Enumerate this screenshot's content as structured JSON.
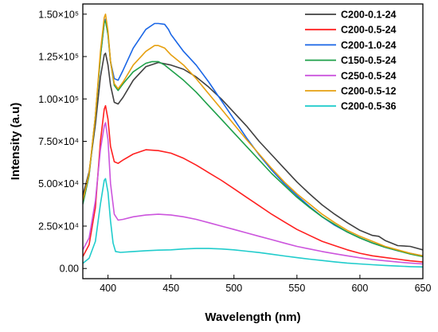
{
  "chart_data": {
    "type": "line",
    "xlabel": "Wavelength (nm)",
    "ylabel": "Intensity (a.u)",
    "xlim": [
      380,
      650
    ],
    "ylim": [
      -6000,
      156000
    ],
    "x_ticks": [
      400,
      450,
      500,
      550,
      600,
      650
    ],
    "x_tick_labels": [
      "400",
      "450",
      "500",
      "550",
      "600",
      "650"
    ],
    "y_ticks": [
      0,
      25000,
      50000,
      75000,
      100000,
      125000,
      150000
    ],
    "y_tick_labels": [
      "0.00",
      "2.50×10⁴",
      "5.00×10⁴",
      "7.50×10⁴",
      "1.00×10⁵",
      "1.25×10⁵",
      "1.50×10⁵"
    ],
    "legend_position": "top-right",
    "series": [
      {
        "name": "C200-0.1-24",
        "color": "#404040",
        "x": [
          380,
          385,
          390,
          394,
          397,
          398,
          400,
          402,
          405,
          408,
          412,
          420,
          430,
          440,
          450,
          460,
          470,
          480,
          490,
          500,
          510,
          520,
          530,
          540,
          550,
          560,
          570,
          580,
          590,
          600,
          610,
          615,
          620,
          625,
          630,
          640,
          650
        ],
        "y": [
          43000,
          57000,
          85000,
          113000,
          126000,
          127000,
          120000,
          108000,
          98000,
          97000,
          101000,
          111000,
          119000,
          121500,
          120000,
          117500,
          113000,
          107000,
          100000,
          92000,
          84000,
          75000,
          67000,
          59000,
          51000,
          44000,
          37500,
          32000,
          27000,
          22500,
          19500,
          19000,
          16500,
          15000,
          13500,
          13000,
          11000
        ]
      },
      {
        "name": "C200-0.5-24",
        "color": "#ff2020",
        "x": [
          380,
          385,
          390,
          394,
          397,
          398,
          400,
          402,
          405,
          408,
          412,
          420,
          430,
          440,
          450,
          460,
          470,
          480,
          490,
          500,
          510,
          520,
          530,
          540,
          550,
          560,
          570,
          580,
          590,
          600,
          610,
          620,
          630,
          640,
          650
        ],
        "y": [
          7000,
          14000,
          36000,
          75000,
          94000,
          96000,
          88000,
          72000,
          63000,
          62000,
          64000,
          67500,
          70000,
          69500,
          68000,
          65000,
          61000,
          56500,
          52000,
          47000,
          42000,
          37000,
          32000,
          27500,
          23000,
          19500,
          16000,
          13500,
          11000,
          9000,
          7500,
          6500,
          5500,
          4500,
          3800
        ]
      },
      {
        "name": "C200-1.0-24",
        "color": "#1a66e6",
        "x": [
          380,
          385,
          390,
          394,
          397,
          398,
          400,
          402,
          405,
          408,
          412,
          420,
          430,
          437,
          440,
          445,
          448,
          450,
          455,
          460,
          470,
          480,
          490,
          500,
          510,
          520,
          530,
          540,
          550,
          560,
          570,
          580,
          590,
          600,
          610,
          620,
          630,
          640,
          650
        ],
        "y": [
          38000,
          55000,
          90000,
          125000,
          145000,
          147000,
          138000,
          122000,
          112000,
          111000,
          117000,
          130000,
          141000,
          144500,
          144500,
          144000,
          141000,
          138000,
          133000,
          128000,
          120000,
          110000,
          99000,
          88000,
          77000,
          67000,
          58000,
          50000,
          43000,
          36500,
          30500,
          25500,
          21500,
          18000,
          15000,
          12500,
          10500,
          9000,
          7500
        ]
      },
      {
        "name": "C150-0.5-24",
        "color": "#1fa04a",
        "x": [
          380,
          385,
          390,
          394,
          397,
          398,
          400,
          402,
          405,
          408,
          412,
          420,
          430,
          435,
          440,
          445,
          450,
          460,
          470,
          480,
          490,
          500,
          510,
          520,
          530,
          540,
          550,
          560,
          570,
          580,
          590,
          600,
          610,
          620,
          630,
          640,
          650
        ],
        "y": [
          38000,
          55000,
          90000,
          125000,
          145000,
          146000,
          138000,
          122000,
          108000,
          105000,
          109000,
          116000,
          121000,
          122000,
          122000,
          120000,
          117000,
          111000,
          104000,
          96000,
          88000,
          80000,
          72000,
          64000,
          56000,
          49000,
          42000,
          36000,
          30500,
          26000,
          21500,
          18000,
          15000,
          12500,
          10500,
          8500,
          7000
        ]
      },
      {
        "name": "C250-0.5-24",
        "color": "#cc55dd",
        "x": [
          380,
          385,
          390,
          394,
          397,
          398,
          400,
          402,
          405,
          408,
          412,
          420,
          430,
          440,
          450,
          460,
          470,
          480,
          490,
          500,
          510,
          520,
          530,
          540,
          550,
          560,
          570,
          580,
          590,
          600,
          610,
          620,
          630,
          640,
          650
        ],
        "y": [
          11000,
          18000,
          40000,
          70000,
          84000,
          86000,
          76000,
          50000,
          32000,
          28500,
          29000,
          30500,
          31500,
          32000,
          31500,
          30500,
          29000,
          27000,
          25000,
          23000,
          21000,
          19000,
          17000,
          15000,
          13000,
          11500,
          10000,
          8700,
          7500,
          6300,
          5300,
          4500,
          3800,
          3200,
          2700
        ]
      },
      {
        "name": "C200-0.5-12",
        "color": "#e6a010",
        "x": [
          380,
          385,
          390,
          394,
          397,
          398,
          400,
          402,
          405,
          408,
          412,
          420,
          430,
          437,
          440,
          445,
          450,
          460,
          470,
          480,
          490,
          500,
          510,
          520,
          530,
          540,
          550,
          560,
          570,
          580,
          590,
          600,
          610,
          620,
          630,
          640,
          650
        ],
        "y": [
          40000,
          56000,
          90000,
          128000,
          148000,
          150000,
          140000,
          122000,
          109000,
          106000,
          110000,
          120000,
          128000,
          131500,
          131500,
          130000,
          126000,
          120000,
          112000,
          103000,
          94000,
          85000,
          76000,
          67500,
          59000,
          51000,
          44000,
          38000,
          32000,
          27000,
          22500,
          19000,
          16000,
          13000,
          11000,
          9000,
          7500
        ]
      },
      {
        "name": "C200-0.5-36",
        "color": "#20cccc",
        "x": [
          380,
          385,
          390,
          394,
          397,
          398,
          400,
          402,
          404,
          406,
          410,
          420,
          430,
          440,
          450,
          460,
          470,
          480,
          490,
          500,
          510,
          520,
          530,
          540,
          550,
          560,
          570,
          580,
          590,
          600,
          610,
          620,
          630,
          640,
          650
        ],
        "y": [
          3000,
          6000,
          16000,
          38000,
          52000,
          53000,
          45000,
          28000,
          15000,
          10000,
          9500,
          10000,
          10500,
          10800,
          11000,
          11500,
          11800,
          11800,
          11500,
          11000,
          10200,
          9400,
          8400,
          7400,
          6400,
          5500,
          4700,
          3900,
          3200,
          2700,
          2200,
          1800,
          1400,
          1100,
          900
        ]
      }
    ]
  }
}
